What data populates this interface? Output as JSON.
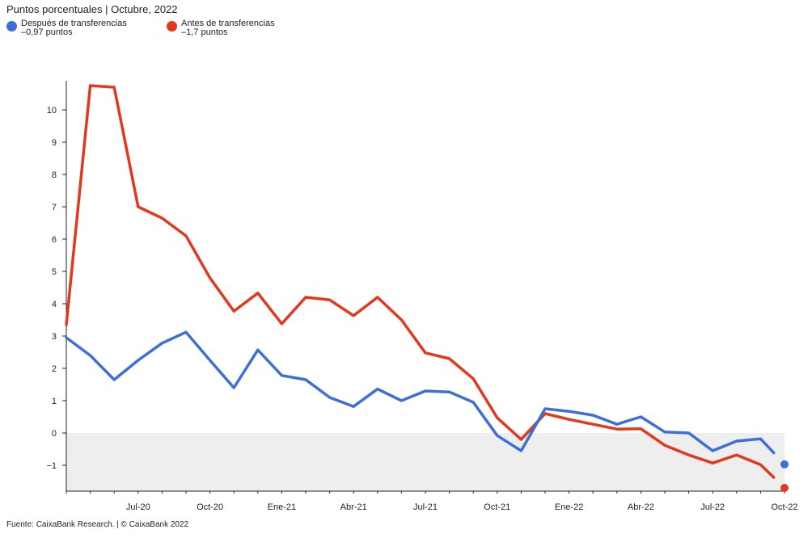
{
  "subtitle": "Puntos porcentuales | Octubre, 2022",
  "source": "Fuente: CaixaBank Research. | © CaixaBank 2022",
  "colors": {
    "after": "#3d6fd8",
    "before": "#e2391c",
    "negative_band": "#eeeeee"
  },
  "legend": [
    {
      "name": "Después de transferencias",
      "value": "–0,97 puntos"
    },
    {
      "name": "Antes de transferencias",
      "value": "–1,7 puntos"
    }
  ],
  "chart_data": {
    "type": "line",
    "x_tick_labels": [
      "Jul-20",
      "Oct-20",
      "Ene-21",
      "Abr-21",
      "Jul-21",
      "Oct-21",
      "Ene-22",
      "Abr-22",
      "Jul-22",
      "Oct-22"
    ],
    "x": [
      "2020-04",
      "2020-05",
      "2020-06",
      "2020-07",
      "2020-08",
      "2020-09",
      "2020-10",
      "2020-11",
      "2020-12",
      "2021-01",
      "2021-02",
      "2021-03",
      "2021-04",
      "2021-05",
      "2021-06",
      "2021-07",
      "2021-08",
      "2021-09",
      "2021-10",
      "2021-11",
      "2021-12",
      "2022-01",
      "2022-02",
      "2022-03",
      "2022-04",
      "2022-05",
      "2022-06",
      "2022-07",
      "2022-08",
      "2022-09",
      "2022-10"
    ],
    "y_ticks": [
      -1,
      0,
      1,
      2,
      3,
      4,
      5,
      6,
      7,
      8,
      9,
      10
    ],
    "ylim": [
      -1.8,
      10.9
    ],
    "negative_area_shaded": true,
    "series": [
      {
        "name": "Después de transferencias",
        "values": [
          2.95,
          2.4,
          1.65,
          2.25,
          2.78,
          3.12,
          2.25,
          1.4,
          2.57,
          1.78,
          1.65,
          1.1,
          0.82,
          1.36,
          1.0,
          1.3,
          1.27,
          0.95,
          -0.08,
          -0.55,
          0.75,
          0.67,
          0.55,
          0.27,
          0.5,
          0.03,
          0.0,
          -0.55,
          -0.25,
          -0.18,
          -0.97
        ]
      },
      {
        "name": "Antes de transferencias",
        "values": [
          3.35,
          10.75,
          10.7,
          7.0,
          6.65,
          6.1,
          4.8,
          3.77,
          4.33,
          3.38,
          4.2,
          4.12,
          3.63,
          4.2,
          3.5,
          2.48,
          2.3,
          1.68,
          0.47,
          -0.2,
          0.6,
          0.42,
          0.27,
          0.12,
          0.13,
          -0.38,
          -0.68,
          -0.93,
          -0.68,
          -0.98,
          -1.7
        ]
      }
    ]
  }
}
